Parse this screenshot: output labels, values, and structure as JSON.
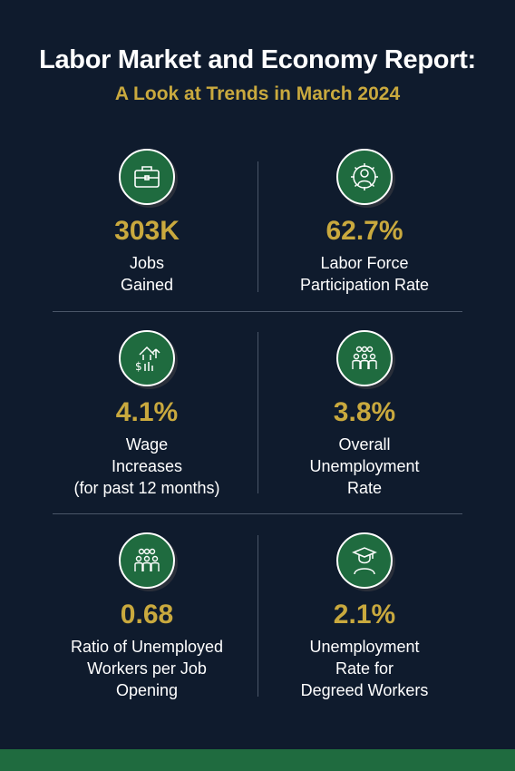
{
  "header": {
    "title": "Labor Market and Economy Report:",
    "subtitle": "A Look at Trends in March 2024"
  },
  "stats": [
    {
      "icon": "briefcase-icon",
      "value": "303K",
      "label_lines": [
        "Jobs",
        "Gained"
      ]
    },
    {
      "icon": "gear-person-icon",
      "value": "62.7%",
      "label_lines": [
        "Labor Force",
        "Participation Rate"
      ]
    },
    {
      "icon": "wage-increase-icon",
      "value": "4.1%",
      "label_lines": [
        "Wage",
        "Increases",
        "(for past 12 months)"
      ]
    },
    {
      "icon": "group-people-icon",
      "value": "3.8%",
      "label_lines": [
        "Overall",
        "Unemployment",
        "Rate"
      ]
    },
    {
      "icon": "group-people-icon",
      "value": "0.68",
      "label_lines": [
        "Ratio of Unemployed",
        "Workers per Job",
        "Opening"
      ]
    },
    {
      "icon": "graduate-icon",
      "value": "2.1%",
      "label_lines": [
        "Unemployment",
        "Rate for",
        "Degreed Workers"
      ]
    }
  ],
  "colors": {
    "background": "#0f1b2d",
    "accent_gold": "#c9a93e",
    "icon_green": "#1f6b3f",
    "divider": "#4a5668"
  }
}
